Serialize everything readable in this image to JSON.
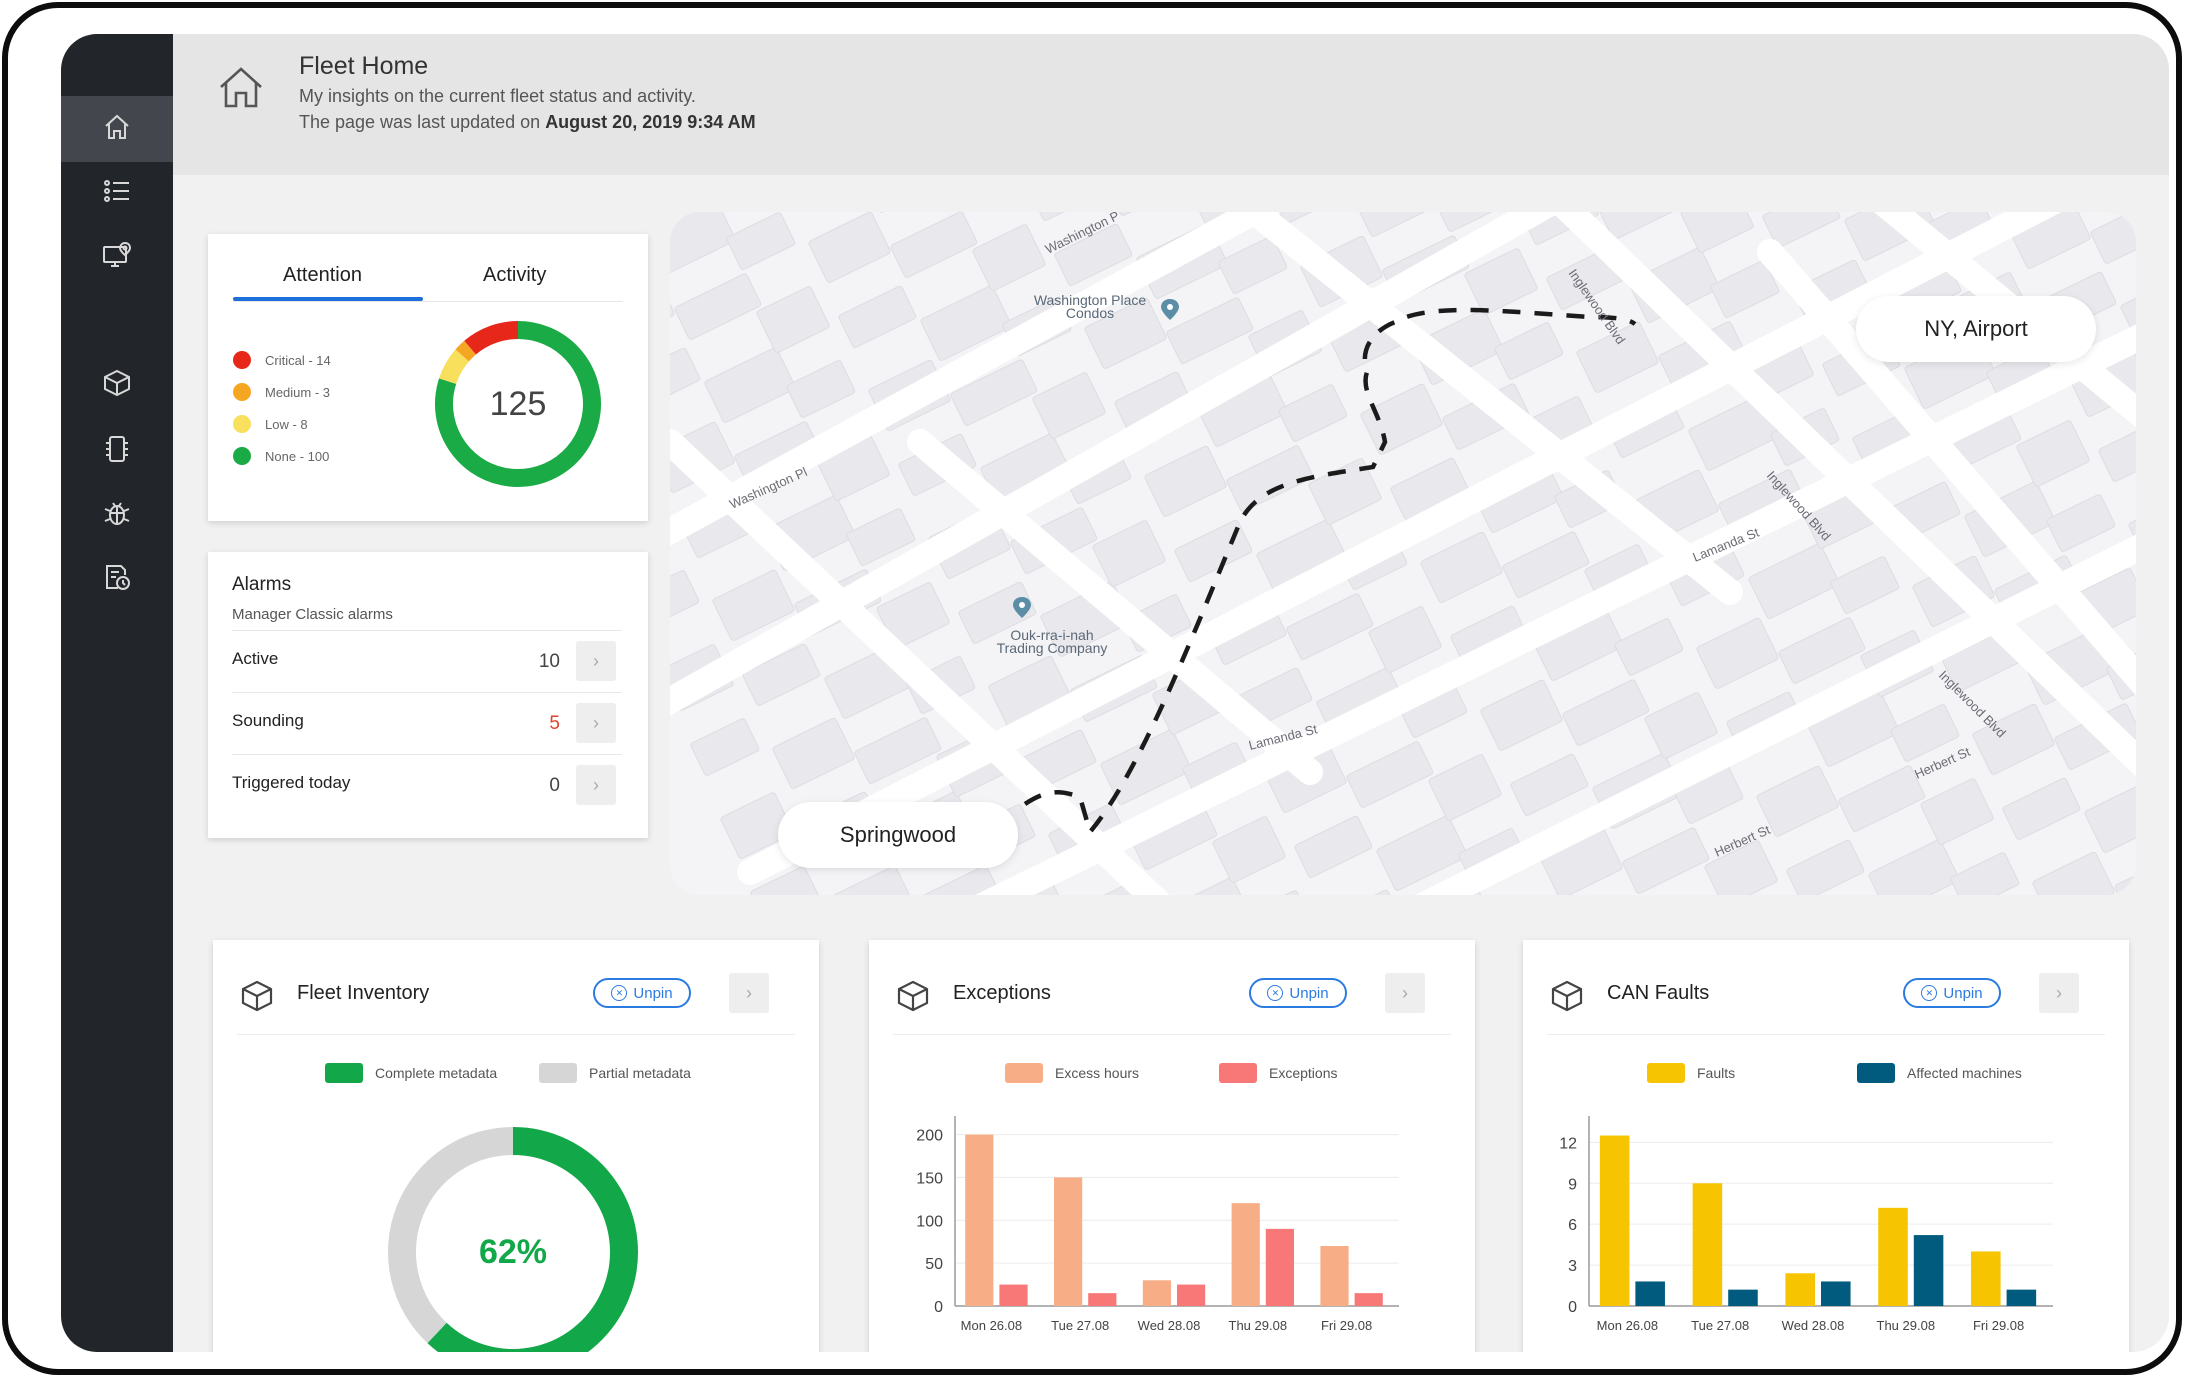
{
  "header": {
    "title": "Fleet Home",
    "subtitle": "My insights on the current fleet status and activity.",
    "updated_prefix": "The page was last updated on",
    "updated_time": "August 20, 2019 9:34 AM"
  },
  "sidebar": {
    "items": [
      {
        "icon": "home-icon",
        "active": true
      },
      {
        "icon": "list-icon",
        "active": false
      },
      {
        "icon": "monitor-location-icon",
        "active": false
      },
      {
        "icon": "cube-icon",
        "active": false
      },
      {
        "icon": "chip-icon",
        "active": false
      },
      {
        "icon": "bug-icon",
        "active": false
      },
      {
        "icon": "report-clock-icon",
        "active": false
      }
    ]
  },
  "attention": {
    "tabs": [
      "Attention",
      "Activity"
    ],
    "total": "125",
    "legend": [
      {
        "label": "Critical - 14",
        "value": 14,
        "color": "#e8271b"
      },
      {
        "label": "Medium - 3",
        "value": 3,
        "color": "#f5a623"
      },
      {
        "label": "Low - 8",
        "value": 8,
        "color": "#f8e05c"
      },
      {
        "label": "None - 100",
        "value": 100,
        "color": "#1aaa46"
      }
    ]
  },
  "alarms": {
    "title": "Alarms",
    "subtitle": "Manager Classic alarms",
    "rows": [
      {
        "label": "Active",
        "value": "10"
      },
      {
        "label": "Sounding",
        "value": "5"
      },
      {
        "label": "Triggered today",
        "value": "0"
      }
    ]
  },
  "map": {
    "labels": {
      "washington_pl_1": "Washington Pl",
      "washington_pl_2": "Washington P",
      "condos": "Washington Place Condos",
      "trading": "Ouk-rra-i-nah Trading Company",
      "lamanda_1": "Lamanda St",
      "lamanda_2": "Lamanda St",
      "inglewood_1": "Inglewood Blvd",
      "inglewood_2": "Inglewood Blvd",
      "inglewood_3": "Inglewood Blvd",
      "herbert_1": "Herbert St",
      "herbert_2": "Herbert St"
    },
    "pills": {
      "start": "Springwood",
      "end": "NY, Airport"
    }
  },
  "widgets": {
    "unpin_label": "Unpin",
    "fleet": {
      "title": "Fleet Inventory",
      "legend": [
        "Complete metadata",
        "Partial metadata"
      ],
      "percent": "62%"
    },
    "exceptions": {
      "title": "Exceptions",
      "legend": [
        "Excess hours",
        "Exceptions"
      ]
    },
    "can": {
      "title": "CAN Faults",
      "legend": [
        "Faults",
        "Affected machines"
      ]
    }
  },
  "chart_data": [
    {
      "type": "pie",
      "title": "",
      "categories": [
        "Complete metadata",
        "Partial metadata"
      ],
      "values": [
        62,
        38
      ],
      "colors": [
        "#12a84a",
        "#d6d6d6"
      ]
    },
    {
      "type": "bar",
      "title": "",
      "categories": [
        "Mon 26.08",
        "Tue 27.08",
        "Wed 28.08",
        "Thu 29.08",
        "Fri 29.08"
      ],
      "series": [
        {
          "name": "Excess hours",
          "values": [
            200,
            150,
            30,
            120,
            70
          ],
          "color": "#f7ad85"
        },
        {
          "name": "Exceptions",
          "values": [
            25,
            15,
            25,
            90,
            15
          ],
          "color": "#f87777"
        }
      ],
      "yticks": [
        0,
        50,
        100,
        150,
        200
      ],
      "ylim": [
        0,
        210
      ],
      "grid": true
    },
    {
      "type": "bar",
      "title": "",
      "categories": [
        "Mon 26.08",
        "Tue 27.08",
        "Wed 28.08",
        "Thu 29.08",
        "Fri 29.08"
      ],
      "series": [
        {
          "name": "Faults",
          "values": [
            12.5,
            9.0,
            2.4,
            7.2,
            4.0
          ],
          "color": "#f6c400"
        },
        {
          "name": "Affected machines",
          "values": [
            1.8,
            1.2,
            1.8,
            5.2,
            1.2
          ],
          "color": "#005b7e"
        }
      ],
      "yticks": [
        0,
        3,
        6,
        9,
        12
      ],
      "ylim": [
        0,
        13.2
      ],
      "grid": true
    }
  ]
}
